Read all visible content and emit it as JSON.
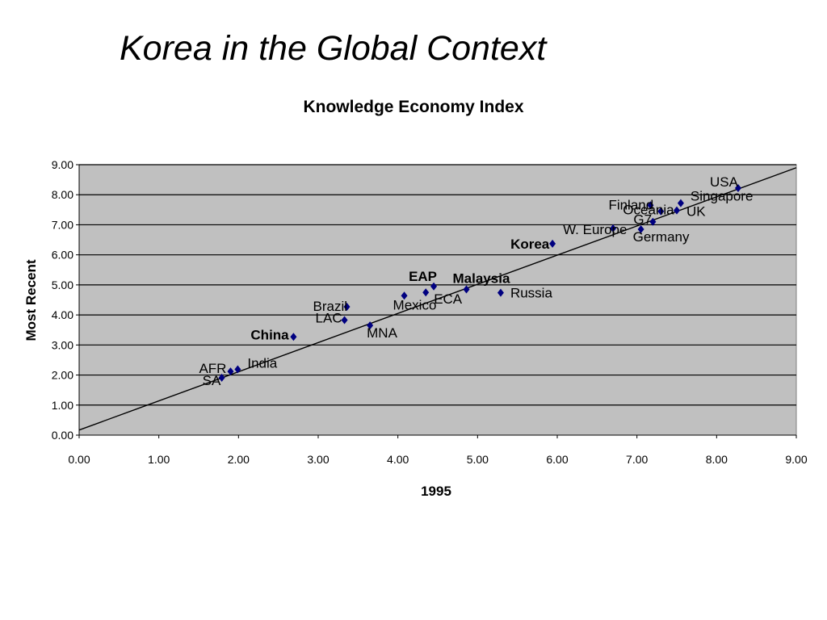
{
  "slide": {
    "title": "Korea in the Global Context"
  },
  "chart_data": {
    "type": "scatter",
    "title": "Knowledge Economy Index",
    "xlabel": "1995",
    "ylabel": "Most Recent",
    "xlim": [
      0,
      9
    ],
    "ylim": [
      0,
      9
    ],
    "x_ticks": [
      "0.00",
      "1.00",
      "2.00",
      "3.00",
      "4.00",
      "5.00",
      "6.00",
      "7.00",
      "8.00",
      "9.00"
    ],
    "y_ticks": [
      "0.00",
      "1.00",
      "2.00",
      "3.00",
      "4.00",
      "5.00",
      "6.00",
      "7.00",
      "8.00",
      "9.00"
    ],
    "grid": "horizontal",
    "plot_background": "#C0C0C0",
    "marker_color": "#000080",
    "highlight_colors": {
      "red": "#FF0000",
      "magenta": "#FF00FF"
    },
    "trendline": {
      "x": [
        0,
        9
      ],
      "y": [
        0.17,
        8.9
      ]
    },
    "points": [
      {
        "label": "USA",
        "x": 8.27,
        "y": 8.22,
        "color": "black"
      },
      {
        "label": "Singapore",
        "x": 7.55,
        "y": 7.72,
        "color": "black"
      },
      {
        "label": "UK",
        "x": 7.5,
        "y": 7.48,
        "color": "black"
      },
      {
        "label": "Finland",
        "x": 7.17,
        "y": 7.65,
        "color": "black"
      },
      {
        "label": "Oceania",
        "x": 7.3,
        "y": 7.45,
        "color": "black"
      },
      {
        "label": "G7",
        "x": 7.2,
        "y": 7.1,
        "color": "black"
      },
      {
        "label": "Germany",
        "x": 7.05,
        "y": 6.85,
        "color": "black"
      },
      {
        "label": "W. Europe",
        "x": 6.7,
        "y": 6.88,
        "color": "black"
      },
      {
        "label": "Korea",
        "x": 5.94,
        "y": 6.37,
        "color": "red"
      },
      {
        "label": "Russia",
        "x": 5.29,
        "y": 4.74,
        "color": "black"
      },
      {
        "label": "Malaysia",
        "x": 4.86,
        "y": 4.85,
        "color": "red"
      },
      {
        "label": "EAP",
        "x": 4.45,
        "y": 4.95,
        "color": "magenta"
      },
      {
        "label": "ECA",
        "x": 4.35,
        "y": 4.75,
        "color": "black"
      },
      {
        "label": "Mexico",
        "x": 4.08,
        "y": 4.64,
        "color": "black"
      },
      {
        "label": "MNA",
        "x": 3.65,
        "y": 3.65,
        "color": "black"
      },
      {
        "label": "Brazil",
        "x": 3.36,
        "y": 4.27,
        "color": "black"
      },
      {
        "label": "LAC",
        "x": 3.33,
        "y": 3.83,
        "color": "black"
      },
      {
        "label": "China",
        "x": 2.69,
        "y": 3.27,
        "color": "red"
      },
      {
        "label": "India",
        "x": 1.99,
        "y": 2.19,
        "color": "black"
      },
      {
        "label": "AFR",
        "x": 1.9,
        "y": 2.12,
        "color": "black"
      },
      {
        "label": "SA",
        "x": 1.79,
        "y": 1.91,
        "color": "black"
      }
    ]
  }
}
